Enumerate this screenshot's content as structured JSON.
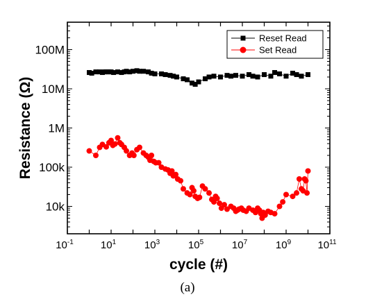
{
  "chart_data": {
    "type": "scatter",
    "xlabel": "cycle (#)",
    "ylabel": "Resistance (Ω)",
    "x_scale": "log",
    "y_scale": "log",
    "xlim": [
      0.1,
      100000000000
    ],
    "ylim": [
      2000,
      500000000
    ],
    "x_ticks": [
      {
        "value": 0.1,
        "base": "10",
        "exp": "-1"
      },
      {
        "value": 10,
        "base": "10",
        "exp": "1"
      },
      {
        "value": 1000,
        "base": "10",
        "exp": "3"
      },
      {
        "value": 100000,
        "base": "10",
        "exp": "5"
      },
      {
        "value": 10000000,
        "base": "10",
        "exp": "7"
      },
      {
        "value": 1000000000,
        "base": "10",
        "exp": "9"
      },
      {
        "value": 100000000000,
        "base": "10",
        "exp": "11"
      }
    ],
    "y_ticks": [
      {
        "value": 10000,
        "label": "10k"
      },
      {
        "value": 100000,
        "label": "100k"
      },
      {
        "value": 1000000,
        "label": "1M"
      },
      {
        "value": 10000000,
        "label": "10M"
      },
      {
        "value": 100000000,
        "label": "100M"
      }
    ],
    "grid": false,
    "legend_position": "top-right",
    "series": [
      {
        "name": "Reset Read",
        "color": "#000000",
        "marker": "square",
        "x": [
          1,
          1.3,
          2,
          3,
          4,
          5,
          6,
          8,
          10,
          13,
          20,
          30,
          40,
          50,
          70,
          100,
          150,
          200,
          300,
          500,
          700,
          1000,
          2000,
          3000,
          5000,
          7000,
          10000,
          20000,
          30000,
          50000,
          70000,
          100000,
          200000,
          300000,
          500000,
          1000000,
          2000000,
          3000000,
          5000000,
          10000000,
          20000000,
          30000000,
          50000000,
          100000000,
          200000000,
          300000000,
          500000000,
          1000000000,
          2000000000,
          3000000000,
          5000000000,
          10000000000
        ],
        "y": [
          26000000,
          25000000,
          27000000,
          27000000,
          26000000,
          27000000,
          27000000,
          27000000,
          27000000,
          26000000,
          27000000,
          26000000,
          27000000,
          28000000,
          27000000,
          28000000,
          29000000,
          28000000,
          28000000,
          27000000,
          25000000,
          24000000,
          24000000,
          23000000,
          22000000,
          21000000,
          20000000,
          18000000,
          17000000,
          14000000,
          13000000,
          15000000,
          18000000,
          20000000,
          21000000,
          20000000,
          22000000,
          21000000,
          22000000,
          21000000,
          23000000,
          21000000,
          20000000,
          23000000,
          21000000,
          26000000,
          24000000,
          21000000,
          25000000,
          23000000,
          21000000,
          23000000
        ]
      },
      {
        "name": "Set Read",
        "color": "#ff0000",
        "marker": "circle",
        "x": [
          1,
          2,
          3,
          4,
          6,
          8,
          10,
          12,
          15,
          20,
          25,
          30,
          40,
          50,
          70,
          90,
          110,
          150,
          200,
          300,
          400,
          500,
          600,
          700,
          900,
          1100,
          1500,
          2000,
          3000,
          4000,
          5000,
          6000,
          7000,
          9000,
          11000,
          15000,
          20000,
          30000,
          40000,
          50000,
          60000,
          70000,
          90000,
          110000,
          150000,
          200000,
          300000,
          400000,
          500000,
          600000,
          700000,
          900000,
          1100000,
          1500000,
          2000000,
          3000000,
          4000000,
          5000000,
          6000000,
          7000000,
          9000000,
          11000000,
          15000000,
          20000000,
          30000000,
          40000000,
          50000000,
          60000000,
          70000000,
          80000000,
          90000000,
          110000000,
          150000000,
          200000000,
          300000000,
          500000000,
          700000000,
          1000000000,
          2000000000,
          3000000000,
          4000000000,
          5000000000,
          6000000000,
          7000000000,
          8000000000,
          9000000000,
          10000000000
        ],
        "y": [
          260000,
          200000,
          320000,
          380000,
          330000,
          420000,
          480000,
          360000,
          390000,
          560000,
          420000,
          380000,
          320000,
          260000,
          200000,
          230000,
          200000,
          280000,
          320000,
          230000,
          200000,
          180000,
          150000,
          200000,
          140000,
          130000,
          130000,
          100000,
          90000,
          85000,
          70000,
          80000,
          60000,
          65000,
          50000,
          45000,
          28000,
          22000,
          20000,
          30000,
          25000,
          18000,
          16000,
          17000,
          33000,
          28000,
          22000,
          15000,
          13000,
          18000,
          16000,
          12000,
          9000,
          11000,
          8500,
          10000,
          9000,
          7500,
          8000,
          8500,
          9000,
          8000,
          7500,
          9000,
          8000,
          7000,
          9000,
          8000,
          6500,
          5000,
          7000,
          6000,
          7500,
          7000,
          6500,
          10000,
          13000,
          20000,
          18000,
          22000,
          50000,
          28000,
          25000,
          50000,
          45000,
          22000,
          80000
        ]
      }
    ],
    "caption": "(a)"
  }
}
